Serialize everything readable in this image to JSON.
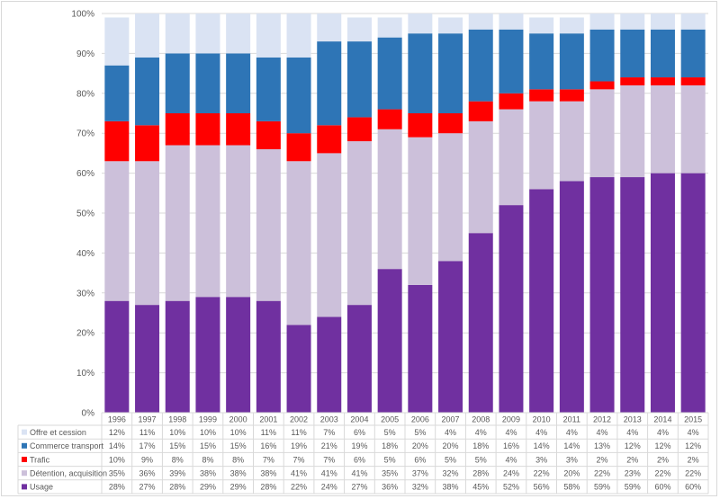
{
  "chart_data": {
    "type": "bar",
    "stacked": true,
    "normalized": true,
    "title": "",
    "xlabel": "",
    "ylabel": "",
    "ylim": [
      0,
      100
    ],
    "y_ticks": [
      "0%",
      "10%",
      "20%",
      "30%",
      "40%",
      "50%",
      "60%",
      "70%",
      "80%",
      "90%",
      "100%"
    ],
    "grid": true,
    "legend": "data-table-bottom",
    "categories": [
      "1996",
      "1997",
      "1998",
      "1999",
      "2000",
      "2001",
      "2002",
      "2003",
      "2004",
      "2005",
      "2006",
      "2007",
      "2008",
      "2009",
      "2010",
      "2011",
      "2012",
      "2013",
      "2014",
      "2015"
    ],
    "series": [
      {
        "name": "Usage",
        "color": "#7030a0",
        "values": [
          28,
          27,
          28,
          29,
          29,
          28,
          22,
          24,
          27,
          36,
          32,
          38,
          45,
          52,
          56,
          58,
          59,
          59,
          60,
          60
        ]
      },
      {
        "name": "Détention, acquisition",
        "color": "#ccc0da",
        "values": [
          35,
          36,
          39,
          38,
          38,
          38,
          41,
          41,
          41,
          35,
          37,
          32,
          28,
          24,
          22,
          20,
          22,
          23,
          22,
          22
        ]
      },
      {
        "name": "Trafic",
        "color": "#ff0000",
        "values": [
          10,
          9,
          8,
          8,
          8,
          7,
          7,
          7,
          6,
          5,
          6,
          5,
          5,
          4,
          3,
          3,
          2,
          2,
          2,
          2
        ]
      },
      {
        "name": "Commerce transport",
        "color": "#2e75b6",
        "values": [
          14,
          17,
          15,
          15,
          15,
          16,
          19,
          21,
          19,
          18,
          20,
          20,
          18,
          16,
          14,
          14,
          13,
          12,
          12,
          12
        ]
      },
      {
        "name": "Offre et cession",
        "color": "#dae3f3",
        "values": [
          12,
          11,
          10,
          10,
          10,
          11,
          11,
          7,
          6,
          5,
          5,
          4,
          4,
          4,
          4,
          4,
          4,
          4,
          4,
          4
        ]
      }
    ],
    "table_row_order": [
      "Offre et cession",
      "Commerce transport",
      "Trafic",
      "Détention, acquisition",
      "Usage"
    ],
    "value_suffix": "%"
  }
}
